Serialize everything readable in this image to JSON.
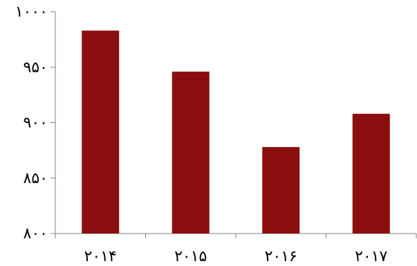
{
  "chart_data": {
    "type": "bar",
    "categories": [
      "۲۰۱۴",
      "۲۰۱۵",
      "۲۰۱۶",
      "۲۰۱۷"
    ],
    "values": [
      983,
      946,
      878,
      908
    ],
    "ylim": [
      800,
      1000
    ],
    "yticks": [
      800,
      850,
      900,
      950,
      1000
    ],
    "ytick_labels": [
      "۸۰۰",
      "۸۵۰",
      "۹۰۰",
      "۹۵۰",
      "۱۰۰۰"
    ],
    "bar_color": "#8b0e0e",
    "axis_color": "#808080",
    "grid": false,
    "legend": "none"
  }
}
